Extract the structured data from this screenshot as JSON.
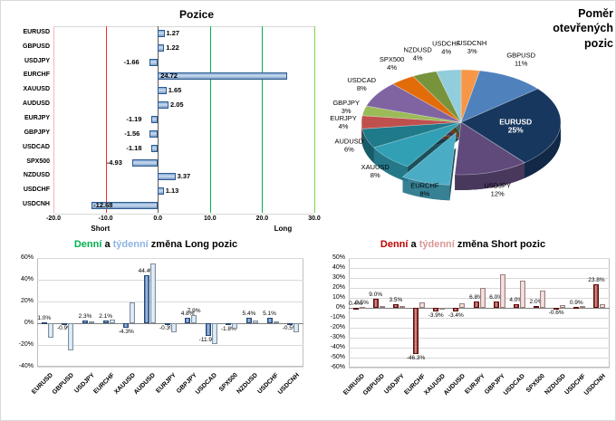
{
  "chart_data": [
    {
      "id": "pozice",
      "type": "bar",
      "orientation": "horizontal",
      "title": "Pozice",
      "categories": [
        "EURUSD",
        "GBPUSD",
        "USDJPY",
        "EURCHF",
        "XAUUSD",
        "AUDUSD",
        "EURJPY",
        "GBPJPY",
        "USDCAD",
        "SPX500",
        "NZDUSD",
        "USDCHF",
        "USDCNH"
      ],
      "values": [
        1.27,
        1.22,
        -1.66,
        24.72,
        1.65,
        2.05,
        -1.19,
        -1.56,
        -1.18,
        -4.93,
        3.37,
        1.13,
        -12.68
      ],
      "xlim": [
        -20,
        30
      ],
      "x_ticks": [
        "-20.0",
        "-10.0",
        "0.0",
        "10.0",
        "20.0",
        "30.0"
      ],
      "x_tick_values": [
        -20,
        -10,
        0,
        10,
        20,
        30
      ],
      "axis_label_left": "Short",
      "axis_label_right": "Long",
      "bar_color": "#7FA8D6",
      "bar_border": "#2E5A8F",
      "grid_neg_color": "#FF2A2A",
      "grid_pos_color": "#00B050"
    },
    {
      "id": "pomer-otevrenych-pozic",
      "type": "pie",
      "title_lines": [
        "Poměr",
        "otevřených",
        "pozic"
      ],
      "slices": [
        {
          "label": "USDCNH",
          "pct": 3,
          "color": "#F79646"
        },
        {
          "label": "GBPUSD",
          "pct": 11,
          "color": "#4F81BD"
        },
        {
          "label": "EURUSD",
          "pct": 25,
          "color": "#17375E",
          "label_inside": true,
          "label_color": "#FFFFFF"
        },
        {
          "label": "USDJPY",
          "pct": 12,
          "color": "#604A7B"
        },
        {
          "label": "EURCHF",
          "pct": 8,
          "color": "#4BACC6",
          "pulled": true
        },
        {
          "label": "XAUUSD",
          "pct": 8,
          "color": "#31A0B5"
        },
        {
          "label": "AUDUSD",
          "pct": 6,
          "color": "#1F7A8A"
        },
        {
          "label": "EURJPY",
          "pct": 4,
          "color": "#C0504D"
        },
        {
          "label": "GBPJPY",
          "pct": 3,
          "color": "#9BBB59"
        },
        {
          "label": "USDCAD",
          "pct": 8,
          "color": "#8064A2"
        },
        {
          "label": "SPX500",
          "pct": 4,
          "color": "#E36C0A"
        },
        {
          "label": "NZDUSD",
          "pct": 4,
          "color": "#77933C"
        },
        {
          "label": "USDCHF",
          "pct": 4,
          "color": "#92CDDC"
        }
      ]
    },
    {
      "id": "long-change",
      "type": "bar",
      "title_parts": [
        {
          "text": "Denní",
          "color": "#00B050"
        },
        {
          "text": " a ",
          "color": "#000000"
        },
        {
          "text": "týdenní",
          "color": "#8EB4E3"
        },
        {
          "text": " změna Long pozic",
          "color": "#000000"
        }
      ],
      "categories": [
        "EURUSD",
        "GBPUSD",
        "USDJPY",
        "EURCHF",
        "XAUUSD",
        "AUDUSD",
        "EURJPY",
        "GBPJPY",
        "USDCAD",
        "SPX500",
        "NZDUSD",
        "USDCHF",
        "USDCNH"
      ],
      "series": [
        {
          "name": "denní změna",
          "color": "#3A6BAE",
          "show_labels": true,
          "values": [
            1.0,
            -0.9,
            2.3,
            2.1,
            -4.3,
            44.4,
            -0.3,
            4.8,
            -11.9,
            -1.8,
            5.4,
            5.1,
            -0.5
          ]
        },
        {
          "name": "týdenní změna",
          "color": "#C7DCF0",
          "show_labels": false,
          "labels_shown": [
            false,
            false,
            false,
            false,
            false,
            false,
            false,
            true,
            false,
            false,
            false,
            false,
            false
          ],
          "values": [
            -13.0,
            -25.0,
            1.5,
            3.2,
            19.5,
            55.0,
            -8.5,
            7.9,
            -19.5,
            -5.2,
            2.6,
            1.4,
            -8.2
          ]
        }
      ],
      "ylim": [
        -40,
        60
      ],
      "y_step": 20,
      "y_ticks": [
        "60%",
        "40%",
        "20%",
        "0%",
        "-20%",
        "-40%"
      ]
    },
    {
      "id": "short-change",
      "type": "bar",
      "title_parts": [
        {
          "text": "Denní",
          "color": "#C00000"
        },
        {
          "text": " a ",
          "color": "#000000"
        },
        {
          "text": "týdenní",
          "color": "#D99694"
        },
        {
          "text": " změna Short pozic",
          "color": "#000000"
        }
      ],
      "categories": [
        "EURUSD",
        "GBPUSD",
        "USDJPY",
        "EURCHF",
        "XAUUSD",
        "AUDUSD",
        "EURJPY",
        "GBPJPY",
        "USDCAD",
        "SPX500",
        "NZDUSD",
        "USDCHF",
        "USDCNH"
      ],
      "series": [
        {
          "name": "denní změna",
          "color": "#8C1511",
          "show_labels": true,
          "values": [
            0.4,
            9.0,
            3.5,
            -46.3,
            -3.9,
            -3.4,
            6.8,
            6.0,
            4.0,
            2.0,
            -0.6,
            0.9,
            23.8
          ]
        },
        {
          "name": "týdenní změna",
          "color": "#EBC8C6",
          "show_labels": false,
          "labels_shown": [
            true,
            false,
            false,
            false,
            false,
            false,
            false,
            false,
            false,
            false,
            false,
            false,
            false
          ],
          "values": [
            0.5,
            2.1,
            1.6,
            5.8,
            -1.8,
            4.1,
            19.6,
            33.2,
            27.4,
            17.2,
            2.4,
            1.7,
            3.8
          ]
        }
      ],
      "ylim": [
        -60,
        50
      ],
      "y_step": 10,
      "y_ticks": [
        "50%",
        "40%",
        "30%",
        "20%",
        "10%",
        "0%",
        "-10%",
        "-20%",
        "-30%",
        "-40%",
        "-50%",
        "-60%"
      ]
    }
  ]
}
